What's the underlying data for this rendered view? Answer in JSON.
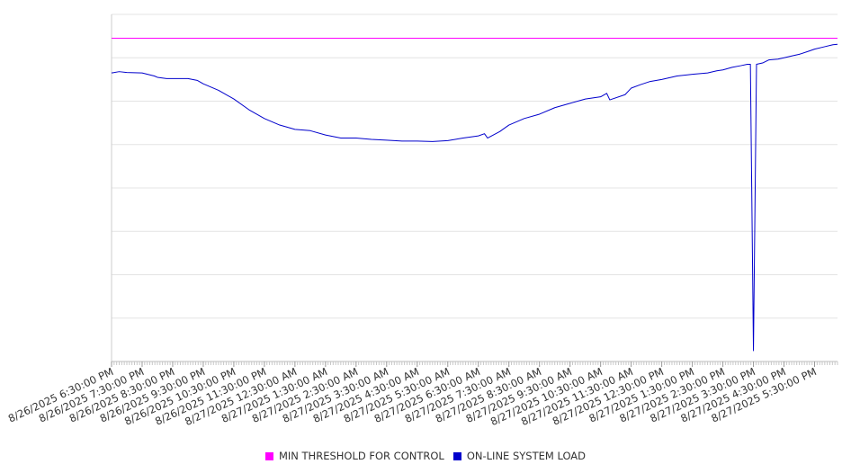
{
  "chart_data": {
    "type": "line",
    "x_tick_labels": [
      "8/26/2025 6:30:00 PM",
      "8/26/2025 7:30:00 PM",
      "8/26/2025 8:30:00 PM",
      "8/26/2025 9:30:00 PM",
      "8/26/2025 10:30:00 PM",
      "8/26/2025 11:30:00 PM",
      "8/27/2025 12:30:00 AM",
      "8/27/2025 1:30:00 AM",
      "8/27/2025 2:30:00 AM",
      "8/27/2025 3:30:00 AM",
      "8/27/2025 4:30:00 AM",
      "8/27/2025 5:30:00 AM",
      "8/27/2025 6:30:00 AM",
      "8/27/2025 7:30:00 AM",
      "8/27/2025 8:30:00 AM",
      "8/27/2025 9:30:00 AM",
      "8/27/2025 10:30:00 AM",
      "8/27/2025 11:30:00 AM",
      "8/27/2025 12:30:00 PM",
      "8/27/2025 1:30:00 PM",
      "8/27/2025 2:30:00 PM",
      "8/27/2025 3:30:00 PM",
      "8/27/2025 4:30:00 PM",
      "8/27/2025 5:30:00 PM"
    ],
    "x_unit": "hours after 8/26/2025 6:30:00 PM",
    "x_range": [
      0,
      23.75
    ],
    "y_range": [
      0,
      8
    ],
    "y_tick_labels_shown": false,
    "grid": "horizontal",
    "legend_position": "bottom-center",
    "series": [
      {
        "name": "MIN THRESHOLD FOR CONTROL",
        "color": "#ff00ff",
        "points": [
          [
            0,
            7.45
          ],
          [
            23.75,
            7.45
          ]
        ]
      },
      {
        "name": "ON-LINE SYSTEM LOAD",
        "color": "#0000cc",
        "points": [
          [
            0,
            6.65
          ],
          [
            0.25,
            6.68
          ],
          [
            0.5,
            6.66
          ],
          [
            1.0,
            6.65
          ],
          [
            1.4,
            6.58
          ],
          [
            1.5,
            6.55
          ],
          [
            1.8,
            6.52
          ],
          [
            2.5,
            6.52
          ],
          [
            2.8,
            6.48
          ],
          [
            3.0,
            6.4
          ],
          [
            3.5,
            6.25
          ],
          [
            4.0,
            6.05
          ],
          [
            4.5,
            5.8
          ],
          [
            5.0,
            5.6
          ],
          [
            5.5,
            5.45
          ],
          [
            6.0,
            5.35
          ],
          [
            6.5,
            5.32
          ],
          [
            7.0,
            5.22
          ],
          [
            7.5,
            5.15
          ],
          [
            8.0,
            5.15
          ],
          [
            8.5,
            5.12
          ],
          [
            9.0,
            5.1
          ],
          [
            9.5,
            5.08
          ],
          [
            10.0,
            5.08
          ],
          [
            10.5,
            5.07
          ],
          [
            11.0,
            5.09
          ],
          [
            11.5,
            5.15
          ],
          [
            12.0,
            5.2
          ],
          [
            12.2,
            5.25
          ],
          [
            12.3,
            5.15
          ],
          [
            12.7,
            5.3
          ],
          [
            13.0,
            5.45
          ],
          [
            13.5,
            5.6
          ],
          [
            14.0,
            5.7
          ],
          [
            14.5,
            5.85
          ],
          [
            15.0,
            5.95
          ],
          [
            15.5,
            6.05
          ],
          [
            16.0,
            6.1
          ],
          [
            16.2,
            6.18
          ],
          [
            16.3,
            6.03
          ],
          [
            16.8,
            6.15
          ],
          [
            17.0,
            6.3
          ],
          [
            17.3,
            6.38
          ],
          [
            17.6,
            6.45
          ],
          [
            18.0,
            6.5
          ],
          [
            18.5,
            6.58
          ],
          [
            19.0,
            6.62
          ],
          [
            19.5,
            6.65
          ],
          [
            19.8,
            6.7
          ],
          [
            20.0,
            6.72
          ],
          [
            20.3,
            6.78
          ],
          [
            20.6,
            6.82
          ],
          [
            20.8,
            6.85
          ],
          [
            20.9,
            6.85
          ],
          [
            21.0,
            0.25
          ],
          [
            21.1,
            6.85
          ],
          [
            21.3,
            6.88
          ],
          [
            21.5,
            6.95
          ],
          [
            21.8,
            6.97
          ],
          [
            22.0,
            7.0
          ],
          [
            22.3,
            7.05
          ],
          [
            22.5,
            7.08
          ],
          [
            22.8,
            7.15
          ],
          [
            23.0,
            7.2
          ],
          [
            23.3,
            7.25
          ],
          [
            23.6,
            7.3
          ],
          [
            23.75,
            7.31
          ]
        ]
      }
    ]
  }
}
